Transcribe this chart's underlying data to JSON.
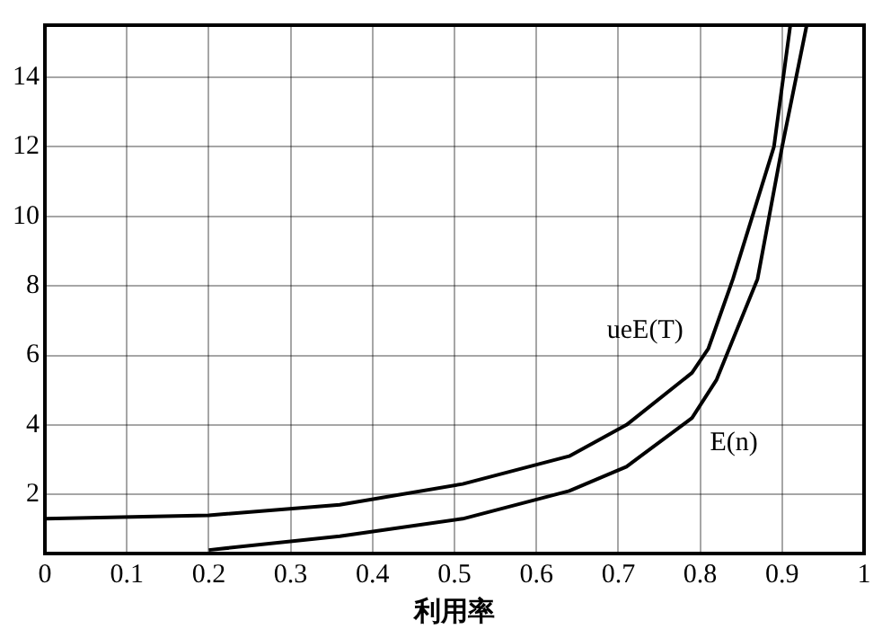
{
  "chart_data": {
    "type": "line",
    "xlabel": "利用率",
    "xlim": [
      0,
      1
    ],
    "xticks": [
      0,
      0.1,
      0.2,
      0.3,
      0.4,
      0.5,
      0.6,
      0.7,
      0.8,
      0.9,
      1
    ],
    "ylim": [
      0.3,
      15.5
    ],
    "yticks": [
      2,
      4,
      6,
      8,
      10,
      12,
      14
    ],
    "grid": true,
    "legend": false,
    "marker": "none",
    "line_style": "solid",
    "series": [
      {
        "name": "ueE(T)",
        "color": "#000000",
        "x": [
          0,
          0.2,
          0.36,
          0.51,
          0.64,
          0.71,
          0.79,
          0.81,
          0.84,
          0.89,
          0.91
        ],
        "values": [
          1.3,
          1.4,
          1.7,
          2.3,
          3.1,
          4.0,
          5.5,
          6.2,
          8.2,
          12,
          15.5
        ]
      },
      {
        "name": "E(n)",
        "color": "#000000",
        "x": [
          0.2,
          0.36,
          0.51,
          0.64,
          0.71,
          0.79,
          0.82,
          0.87,
          0.9,
          0.93
        ],
        "values": [
          0.4,
          0.8,
          1.3,
          2.1,
          2.8,
          4.2,
          5.3,
          8.2,
          12,
          15.5
        ]
      }
    ]
  }
}
